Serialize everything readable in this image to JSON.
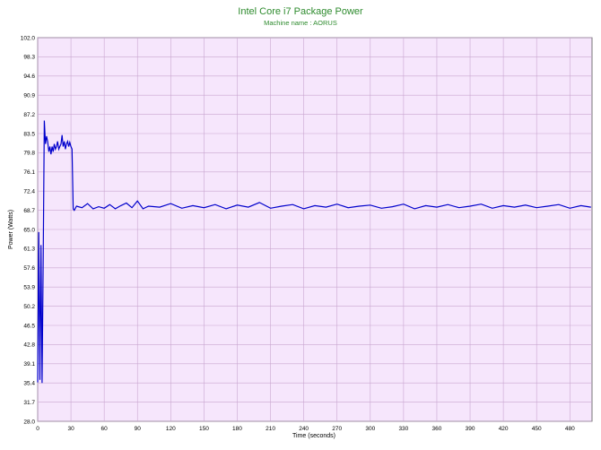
{
  "chart_data": {
    "type": "line",
    "title": "Intel Core i7 Package Power",
    "subtitle": "Machine name : AORUS",
    "xlabel": "Time (seconds)",
    "ylabel": "Power (Watts)",
    "xlim": [
      0,
      500
    ],
    "ylim": [
      28.0,
      102.0
    ],
    "x_ticks": [
      "0",
      "30",
      "60",
      "90",
      "120",
      "150",
      "180",
      "210",
      "240",
      "270",
      "300",
      "330",
      "360",
      "390",
      "420",
      "450",
      "480"
    ],
    "y_ticks": [
      "28.0",
      "31.7",
      "35.4",
      "39.1",
      "42.8",
      "46.5",
      "50.2",
      "53.9",
      "57.6",
      "61.3",
      "65.0",
      "68.7",
      "72.4",
      "76.1",
      "79.8",
      "83.5",
      "87.2",
      "90.9",
      "94.6",
      "98.3",
      "102.0"
    ],
    "grid": true,
    "colors": {
      "plot_background": "#f6e6fc",
      "grid": "#c9a6d0",
      "line": "#0000cc",
      "title": "#2e8b2e"
    },
    "series": [
      {
        "x": [
          0,
          1,
          2,
          3,
          4,
          5,
          6,
          7,
          8,
          9,
          10,
          11,
          12,
          13,
          14,
          15,
          16,
          17,
          18,
          19,
          20,
          21,
          22,
          23,
          24,
          25,
          26,
          27,
          28,
          29,
          30,
          31,
          32,
          33,
          35,
          40,
          45,
          50,
          55,
          60,
          65,
          70,
          75,
          80,
          85,
          90,
          95,
          100,
          110,
          120,
          130,
          140,
          150,
          160,
          170,
          180,
          190,
          200,
          210,
          220,
          230,
          240,
          250,
          260,
          270,
          280,
          290,
          300,
          310,
          320,
          330,
          340,
          350,
          360,
          370,
          380,
          390,
          400,
          410,
          420,
          430,
          440,
          450,
          460,
          470,
          480,
          490,
          499
        ],
        "values": [
          35.5,
          64.5,
          36.0,
          62.0,
          35.4,
          60.0,
          86.0,
          81.5,
          83.0,
          82.0,
          80.0,
          81.0,
          79.5,
          81.0,
          80.0,
          81.5,
          80.5,
          81.0,
          82.0,
          80.5,
          81.0,
          81.5,
          83.2,
          81.0,
          82.0,
          80.5,
          81.5,
          82.0,
          81.0,
          81.8,
          81.0,
          80.5,
          69.0,
          68.7,
          69.5,
          69.2,
          70.0,
          69.0,
          69.4,
          69.1,
          69.8,
          69.0,
          69.6,
          70.1,
          69.2,
          70.5,
          69.0,
          69.5,
          69.3,
          70.0,
          69.1,
          69.6,
          69.2,
          69.8,
          69.0,
          69.7,
          69.3,
          70.2,
          69.1,
          69.5,
          69.8,
          69.0,
          69.6,
          69.3,
          69.9,
          69.2,
          69.5,
          69.7,
          69.1,
          69.4,
          69.9,
          69.0,
          69.6,
          69.3,
          69.8,
          69.2,
          69.5,
          69.9,
          69.1,
          69.6,
          69.3,
          69.7,
          69.2,
          69.5,
          69.8,
          69.1,
          69.6,
          69.3
        ]
      }
    ]
  }
}
